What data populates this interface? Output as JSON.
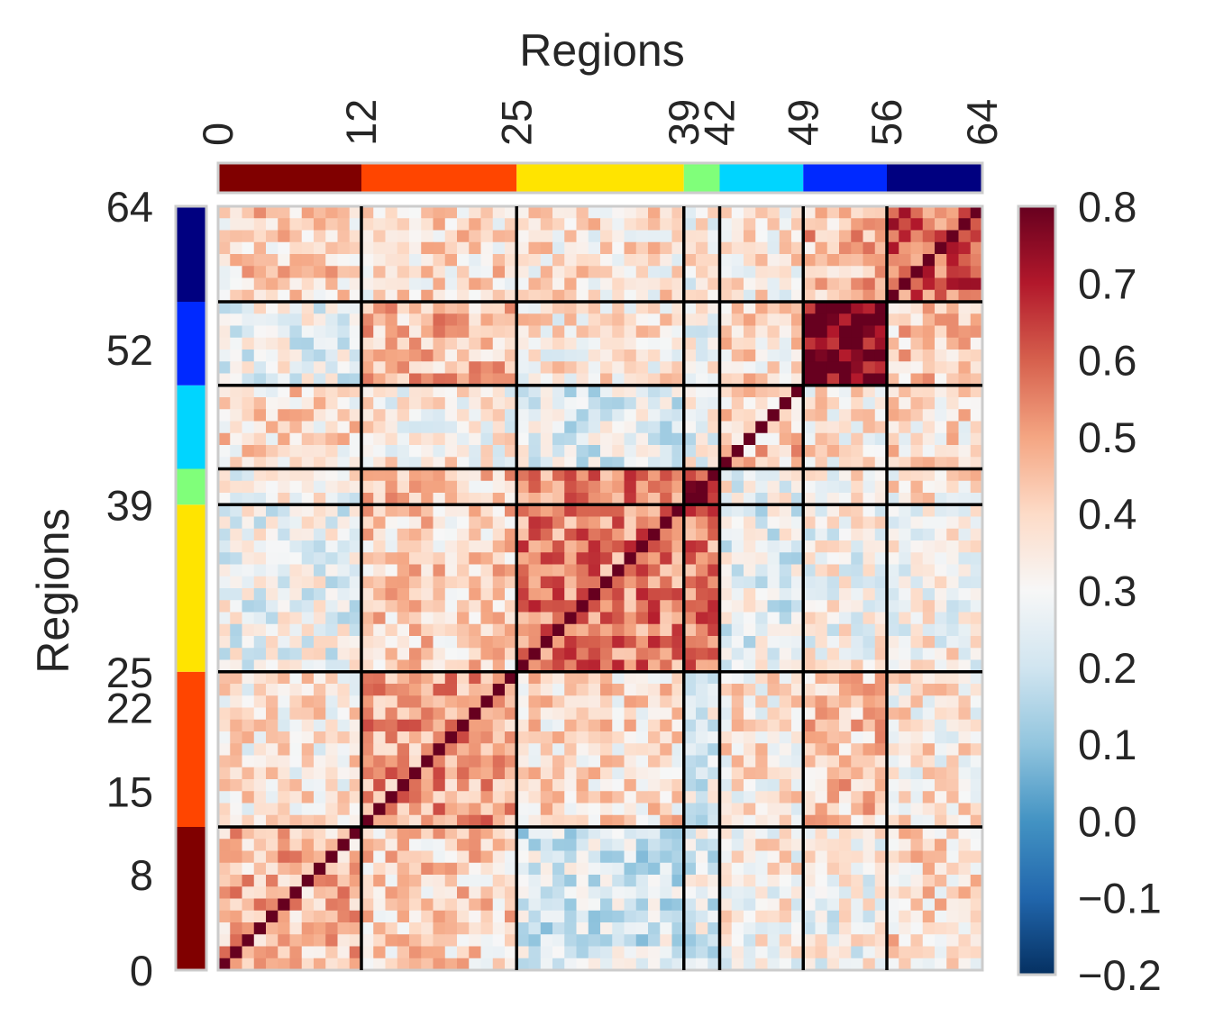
{
  "chart_data": {
    "type": "heatmap",
    "xlabel": "Regions",
    "ylabel": "Regions",
    "n_regions": 64,
    "group_boundaries": [
      0,
      12,
      25,
      39,
      42,
      49,
      56,
      64
    ],
    "x_tick_labels": [
      "0",
      "12",
      "25",
      "39",
      "42",
      "49",
      "56",
      "64"
    ],
    "y_tick_labels": [
      "0",
      "8",
      "15",
      "22",
      "25",
      "39",
      "52",
      "64"
    ],
    "group_colors": [
      "#800000",
      "#ff4500",
      "#ffe400",
      "#80ff7a",
      "#00d5ff",
      "#0029ff",
      "#000080"
    ],
    "colorbar": {
      "min": -0.2,
      "max": 0.8,
      "tick_labels": [
        "−0.2",
        "−0.1",
        "0.0",
        "0.1",
        "0.2",
        "0.3",
        "0.4",
        "0.5",
        "0.6",
        "0.7",
        "0.8"
      ],
      "colormap": "RdBu_r",
      "stops": [
        "#053061",
        "#2166ac",
        "#4393c3",
        "#92c5de",
        "#d1e5f0",
        "#f7f7f7",
        "#fddbc7",
        "#f4a582",
        "#d6604d",
        "#b2182b",
        "#67001f"
      ]
    },
    "block_means": [
      [
        0.45,
        0.4,
        0.22,
        0.25,
        0.33,
        0.3,
        0.38
      ],
      [
        0.35,
        0.5,
        0.38,
        0.25,
        0.35,
        0.42,
        0.35
      ],
      [
        0.28,
        0.4,
        0.55,
        0.55,
        0.26,
        0.3,
        0.32
      ],
      [
        0.32,
        0.42,
        0.55,
        0.7,
        0.3,
        0.32,
        0.35
      ],
      [
        0.38,
        0.33,
        0.25,
        0.28,
        0.42,
        0.35,
        0.38
      ],
      [
        0.28,
        0.45,
        0.35,
        0.3,
        0.38,
        0.78,
        0.42
      ],
      [
        0.4,
        0.38,
        0.36,
        0.32,
        0.35,
        0.45,
        0.6
      ]
    ],
    "diagonal_value": 0.8
  }
}
